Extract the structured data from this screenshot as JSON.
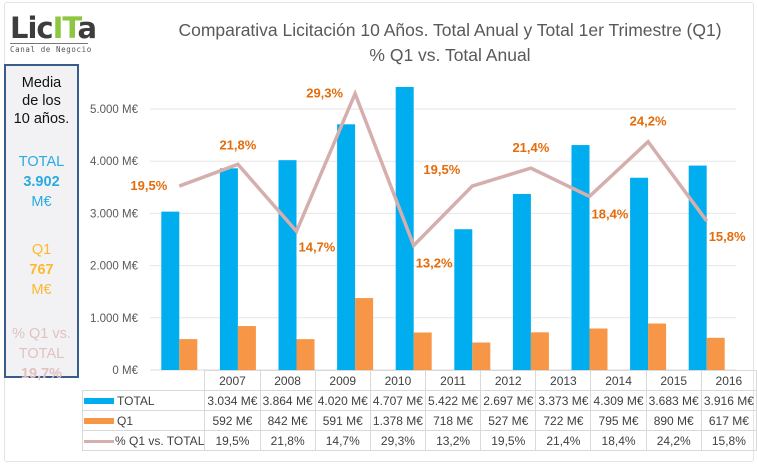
{
  "logo": {
    "word_a": "Lic",
    "word_b": "IT",
    "word_c": "a",
    "subtitle": "Canal de Negocio"
  },
  "sidebox": {
    "heading_lines": [
      "Media",
      "de los",
      "10 años."
    ],
    "total_label": "TOTAL",
    "total_value": "3.902",
    "total_unit": "M€",
    "q1_label": "Q1",
    "q1_value": "767",
    "q1_unit": "M€",
    "pct_label_1": "% Q1 vs.",
    "pct_label_2": "TOTAL",
    "pct_value": "19,7%"
  },
  "colors": {
    "total": "#00adee",
    "q1": "#f79646",
    "pct_line": "#d5aeae",
    "data_label": "#e46c0a",
    "sidebox_border": "#385d8a"
  },
  "chart_data": {
    "type": "bar",
    "title": "Comparativa Licitación 10 Años. Total Anual y Total 1er Trimestre (Q1)",
    "subtitle": "% Q1 vs. Total Anual",
    "xlabel": "",
    "ylabel": "",
    "categories": [
      "2007",
      "2008",
      "2009",
      "2010",
      "2011",
      "2012",
      "2013",
      "2014",
      "2015",
      "2016"
    ],
    "ylim": [
      0,
      5000
    ],
    "y_ticks": [
      0,
      1000,
      2000,
      3000,
      4000,
      5000
    ],
    "y_tick_labels": [
      "0 M€",
      "1.000 M€",
      "2.000 M€",
      "3.000 M€",
      "4.000 M€",
      "5.000 M€"
    ],
    "y2lim": [
      0,
      30
    ],
    "grid": true,
    "legend": "bottom data table",
    "series": [
      {
        "name": "TOTAL",
        "type": "bar",
        "axis": "primary",
        "values": [
          3034,
          3864,
          4020,
          4707,
          5422,
          2697,
          3373,
          4309,
          3683,
          3916
        ],
        "labels": [
          "3.034 M€",
          "3.864 M€",
          "4.020 M€",
          "4.707 M€",
          "5.422 M€",
          "2.697 M€",
          "3.373 M€",
          "4.309 M€",
          "3.683 M€",
          "3.916 M€"
        ]
      },
      {
        "name": "Q1",
        "type": "bar",
        "axis": "primary",
        "values": [
          592,
          842,
          591,
          1378,
          718,
          527,
          722,
          795,
          890,
          617
        ],
        "labels": [
          "592 M€",
          "842 M€",
          "591 M€",
          "1.378 M€",
          "718 M€",
          "527 M€",
          "722 M€",
          "795 M€",
          "890 M€",
          "617 M€"
        ]
      },
      {
        "name": "% Q1 vs. TOTAL",
        "type": "line",
        "axis": "secondary",
        "values": [
          19.5,
          21.8,
          14.7,
          29.3,
          13.2,
          19.5,
          21.4,
          18.4,
          24.2,
          15.8
        ],
        "labels": [
          "19,5%",
          "21,8%",
          "14,7%",
          "29,3%",
          "13,2%",
          "19,5%",
          "21,4%",
          "18,4%",
          "24,2%",
          "15,8%"
        ]
      }
    ]
  }
}
